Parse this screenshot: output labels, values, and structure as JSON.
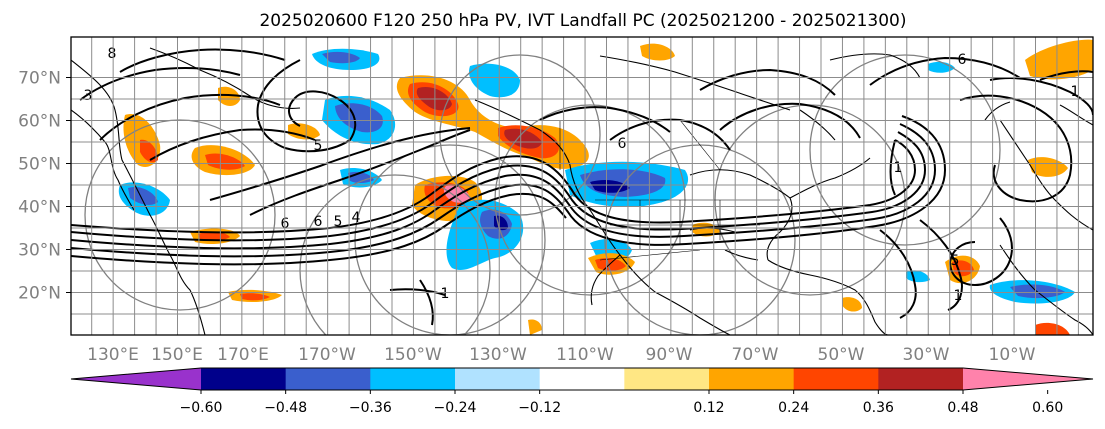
{
  "title": "2025020600 F120 250 hPa PV, IVT Landfall PC (2025021200 - 2025021300)",
  "map": {
    "lon_ticks": [
      "130°E",
      "150°E",
      "170°E",
      "170°W",
      "150°W",
      "130°W",
      "110°W",
      "90°W",
      "70°W",
      "50°W",
      "30°W",
      "10°W"
    ],
    "lat_ticks": [
      "70°N",
      "60°N",
      "50°N",
      "40°N",
      "30°N",
      "20°N"
    ],
    "contour_labels": [
      "8",
      "6",
      "6",
      "5",
      "4",
      "5",
      "1",
      "6",
      "1",
      "6",
      "5",
      "1",
      "1",
      "3"
    ]
  },
  "colorbar": {
    "tick_labels": [
      "−0.60",
      "−0.48",
      "−0.36",
      "−0.24",
      "−0.12",
      "0.12",
      "0.24",
      "0.36",
      "0.48",
      "0.60"
    ],
    "colors": [
      "#9932CC",
      "#00008B",
      "#3A5FCD",
      "#00BFFF",
      "#B0E2FF",
      "#FFFFFF",
      "#FFE784",
      "#FFA500",
      "#FF4500",
      "#B22222",
      "#FF82AB"
    ]
  }
}
